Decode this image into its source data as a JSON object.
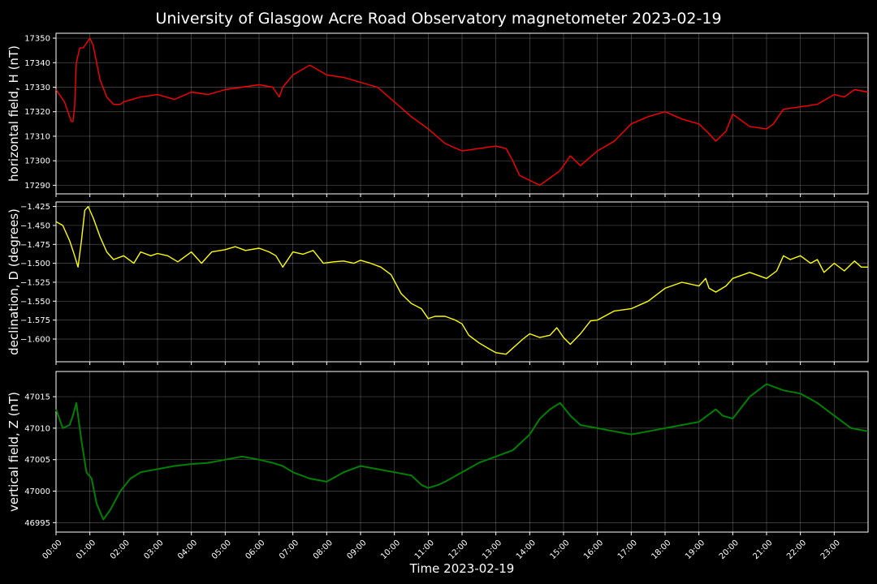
{
  "chart_data": {
    "type": "line",
    "title": "University of Glasgow Acre Road Observatory magnetometer 2023-02-19",
    "xlabel": "Time 2023-02-19",
    "grid": true,
    "x_unit": "hour of day",
    "xlim": [
      0,
      24
    ],
    "x_tick_labels": [
      "00:00",
      "01:00",
      "02:00",
      "03:00",
      "04:00",
      "05:00",
      "06:00",
      "07:00",
      "08:00",
      "09:00",
      "10:00",
      "11:00",
      "12:00",
      "13:00",
      "14:00",
      "15:00",
      "16:00",
      "17:00",
      "18:00",
      "19:00",
      "20:00",
      "21:00",
      "22:00",
      "23:00"
    ],
    "panels": [
      {
        "ylabel": "horizontal field, H (nT)",
        "color": "#ff0000",
        "ylim": [
          17286.5,
          17352
        ],
        "y_ticks": [
          17290,
          17300,
          17310,
          17320,
          17330,
          17340,
          17350
        ],
        "y_tick_labels": [
          "17290",
          "17300",
          "17310",
          "17320",
          "17330",
          "17340",
          "17350"
        ],
        "x": [
          0,
          0.25,
          0.45,
          0.5,
          0.55,
          0.6,
          0.7,
          0.8,
          0.9,
          1.0,
          1.1,
          1.3,
          1.5,
          1.7,
          1.9,
          2.0,
          2.5,
          3.0,
          3.5,
          4.0,
          4.5,
          5.0,
          5.5,
          6.0,
          6.4,
          6.6,
          6.7,
          7.0,
          7.5,
          8.0,
          8.5,
          9.0,
          9.5,
          10.0,
          10.5,
          11.0,
          11.5,
          12.0,
          12.5,
          13.0,
          13.3,
          13.5,
          13.7,
          14.0,
          14.3,
          14.6,
          14.9,
          15.2,
          15.5,
          16.0,
          16.5,
          17.0,
          17.5,
          18.0,
          18.5,
          19.0,
          19.3,
          19.5,
          19.8,
          20.0,
          20.5,
          21.0,
          21.2,
          21.5,
          22.0,
          22.5,
          23.0,
          23.3,
          23.6,
          24.0
        ],
        "y": [
          17329,
          17324,
          17316,
          17316,
          17322,
          17340,
          17346,
          17346,
          17348,
          17350,
          17347,
          17333,
          17326,
          17323,
          17323,
          17324,
          17326,
          17327,
          17325,
          17328,
          17327,
          17329,
          17330,
          17331,
          17330,
          17326,
          17330,
          17335,
          17339,
          17335,
          17334,
          17332,
          17330,
          17324,
          17318,
          17313,
          17307,
          17304,
          17305,
          17306,
          17305,
          17300,
          17294,
          17292,
          17290,
          17293,
          17296,
          17302,
          17298,
          17304,
          17308,
          17315,
          17318,
          17320,
          17317,
          17315,
          17311,
          17308,
          17312,
          17319,
          17314,
          17313,
          17315,
          17321,
          17322,
          17323,
          17327,
          17326,
          17329,
          17328
        ]
      },
      {
        "ylabel": "declination, D (degrees)",
        "color": "#ffff00",
        "ylim": [
          -1.63,
          -1.419
        ],
        "y_ticks": [
          -1.425,
          -1.45,
          -1.475,
          -1.5,
          -1.525,
          -1.55,
          -1.575,
          -1.6
        ],
        "y_tick_labels": [
          "−1.425",
          "−1.450",
          "−1.475",
          "−1.500",
          "−1.525",
          "−1.550",
          "−1.575",
          "−1.600"
        ],
        "x": [
          0,
          0.2,
          0.4,
          0.55,
          0.65,
          0.75,
          0.85,
          0.95,
          1.1,
          1.3,
          1.5,
          1.7,
          2.0,
          2.3,
          2.5,
          2.8,
          3.0,
          3.3,
          3.6,
          4.0,
          4.3,
          4.6,
          5.0,
          5.3,
          5.6,
          6.0,
          6.3,
          6.5,
          6.7,
          7.0,
          7.3,
          7.6,
          7.9,
          8.2,
          8.5,
          8.8,
          9.0,
          9.3,
          9.6,
          9.9,
          10.2,
          10.5,
          10.8,
          11.0,
          11.2,
          11.5,
          11.8,
          12.0,
          12.2,
          12.5,
          12.8,
          13.0,
          13.3,
          13.5,
          13.8,
          14.0,
          14.3,
          14.6,
          14.8,
          15.0,
          15.2,
          15.5,
          15.8,
          16.0,
          16.5,
          17.0,
          17.5,
          18.0,
          18.5,
          19.0,
          19.2,
          19.3,
          19.5,
          19.8,
          20.0,
          20.5,
          21.0,
          21.3,
          21.5,
          21.7,
          22.0,
          22.3,
          22.5,
          22.7,
          23.0,
          23.3,
          23.6,
          23.8,
          24.0
        ],
        "y": [
          -1.445,
          -1.45,
          -1.47,
          -1.49,
          -1.505,
          -1.47,
          -1.43,
          -1.425,
          -1.44,
          -1.465,
          -1.485,
          -1.495,
          -1.49,
          -1.5,
          -1.485,
          -1.49,
          -1.487,
          -1.49,
          -1.498,
          -1.485,
          -1.5,
          -1.485,
          -1.482,
          -1.478,
          -1.483,
          -1.48,
          -1.485,
          -1.49,
          -1.505,
          -1.485,
          -1.488,
          -1.483,
          -1.5,
          -1.498,
          -1.497,
          -1.5,
          -1.496,
          -1.5,
          -1.505,
          -1.515,
          -1.54,
          -1.553,
          -1.56,
          -1.573,
          -1.57,
          -1.57,
          -1.575,
          -1.58,
          -1.595,
          -1.605,
          -1.613,
          -1.618,
          -1.62,
          -1.612,
          -1.6,
          -1.593,
          -1.598,
          -1.595,
          -1.585,
          -1.598,
          -1.607,
          -1.593,
          -1.576,
          -1.575,
          -1.563,
          -1.56,
          -1.55,
          -1.533,
          -1.525,
          -1.53,
          -1.52,
          -1.533,
          -1.538,
          -1.53,
          -1.52,
          -1.512,
          -1.52,
          -1.51,
          -1.49,
          -1.495,
          -1.49,
          -1.5,
          -1.495,
          -1.512,
          -1.5,
          -1.51,
          -1.497,
          -1.505,
          -1.505
        ]
      },
      {
        "ylabel": "vertical field, Z (nT)",
        "color": "#008000",
        "ylim": [
          46993.5,
          47019
        ],
        "y_ticks": [
          46995,
          47000,
          47005,
          47010,
          47015
        ],
        "y_tick_labels": [
          "46995",
          "47000",
          "47005",
          "47010",
          "47015"
        ],
        "x": [
          0,
          0.2,
          0.4,
          0.5,
          0.6,
          0.75,
          0.9,
          1.05,
          1.2,
          1.4,
          1.6,
          1.9,
          2.2,
          2.5,
          3.0,
          3.5,
          4.0,
          4.5,
          5.0,
          5.5,
          6.0,
          6.4,
          6.7,
          7.0,
          7.5,
          8.0,
          8.5,
          9.0,
          9.5,
          10.0,
          10.5,
          10.8,
          11.0,
          11.3,
          11.5,
          12.0,
          12.5,
          13.0,
          13.5,
          14.0,
          14.3,
          14.6,
          14.9,
          15.2,
          15.5,
          16.0,
          16.5,
          17.0,
          17.5,
          18.0,
          18.5,
          19.0,
          19.5,
          19.7,
          20.0,
          20.5,
          21.0,
          21.5,
          22.0,
          22.5,
          23.0,
          23.5,
          24.0
        ],
        "y": [
          47013,
          47010,
          47010.5,
          47012,
          47014,
          47008,
          47003,
          47002,
          46998,
          46995.5,
          46997,
          47000,
          47002,
          47003,
          47003.5,
          47004,
          47004.3,
          47004.5,
          47005,
          47005.5,
          47005,
          47004.5,
          47004,
          47003,
          47002,
          47001.5,
          47003,
          47004,
          47003.5,
          47003,
          47002.5,
          47001,
          47000.5,
          47001,
          47001.5,
          47003,
          47004.5,
          47005.5,
          47006.5,
          47009,
          47011.5,
          47013,
          47014,
          47012,
          47010.5,
          47010,
          47009.5,
          47009,
          47009.5,
          47010,
          47010.5,
          47011,
          47013,
          47012,
          47011.5,
          47015,
          47017,
          47016,
          47015.5,
          47014,
          47012,
          47010,
          47009.5
        ]
      }
    ]
  }
}
